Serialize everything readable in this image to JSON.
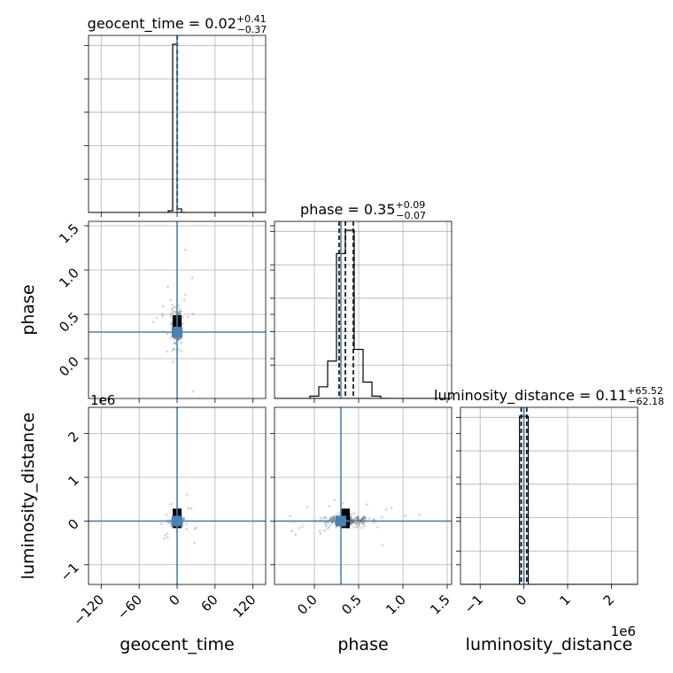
{
  "chart_data": {
    "type": "scatter",
    "parameters": [
      "geocent_time",
      "phase",
      "luminosity_distance"
    ],
    "titles": {
      "geocent_time": {
        "text": "geocent_time = 0.02",
        "plus": "+0.41",
        "minus": "−0.37"
      },
      "phase": {
        "text": "phase = 0.35",
        "plus": "+0.09",
        "minus": "−0.07"
      },
      "luminosity_distance": {
        "text": "luminosity_distance = 0.11",
        "plus": "+65.52",
        "minus": "−62.18"
      }
    },
    "axis_labels": {
      "geocent_time": "geocent_time",
      "phase": "phase",
      "luminosity_distance": "luminosity_distance"
    },
    "offset_labels": {
      "ld_y": "1e6",
      "ld_x": "1e6"
    },
    "ranges": {
      "geocent_time": [
        -140,
        140
      ],
      "phase": [
        -0.45,
        1.55
      ],
      "luminosity_distance": [
        -1450000,
        2600000
      ]
    },
    "ticks": {
      "geocent_time": [
        -120,
        -60,
        0,
        60,
        120
      ],
      "phase": [
        0.0,
        0.5,
        1.0,
        1.5
      ],
      "luminosity_distance": [
        -1,
        0,
        1,
        2
      ]
    },
    "tick_labels": {
      "geocent_time": [
        "−120",
        "−60",
        "0",
        "60",
        "120"
      ],
      "phase": [
        "0.0",
        "0.5",
        "1.0",
        "1.5"
      ],
      "luminosity_distance": [
        "−1",
        "0",
        "1",
        "2"
      ]
    },
    "truths": {
      "geocent_time": 0,
      "phase": 0.3,
      "luminosity_distance": 0
    },
    "quantiles": {
      "geocent_time": [
        -0.35,
        0.02,
        0.43
      ],
      "phase": [
        0.28,
        0.35,
        0.44
      ],
      "luminosity_distance": [
        -62000,
        110,
        65600
      ]
    },
    "histograms": {
      "geocent_time": {
        "edges": [
          -14,
          -7,
          0,
          7,
          14
        ],
        "counts": [
          0.01,
          0.94,
          0.02,
          0.0
        ]
      },
      "phase": {
        "edges": [
          -0.05,
          0.05,
          0.15,
          0.25,
          0.35,
          0.45,
          0.55,
          0.65,
          0.75,
          0.85
        ],
        "counts": [
          0.01,
          0.05,
          0.16,
          0.62,
          0.72,
          0.21,
          0.07,
          0.01,
          0.0
        ]
      },
      "luminosity_distance": {
        "edges": [
          -100000,
          0,
          100000
        ],
        "counts": [
          0.76,
          0.76
        ]
      }
    },
    "grid": true
  }
}
